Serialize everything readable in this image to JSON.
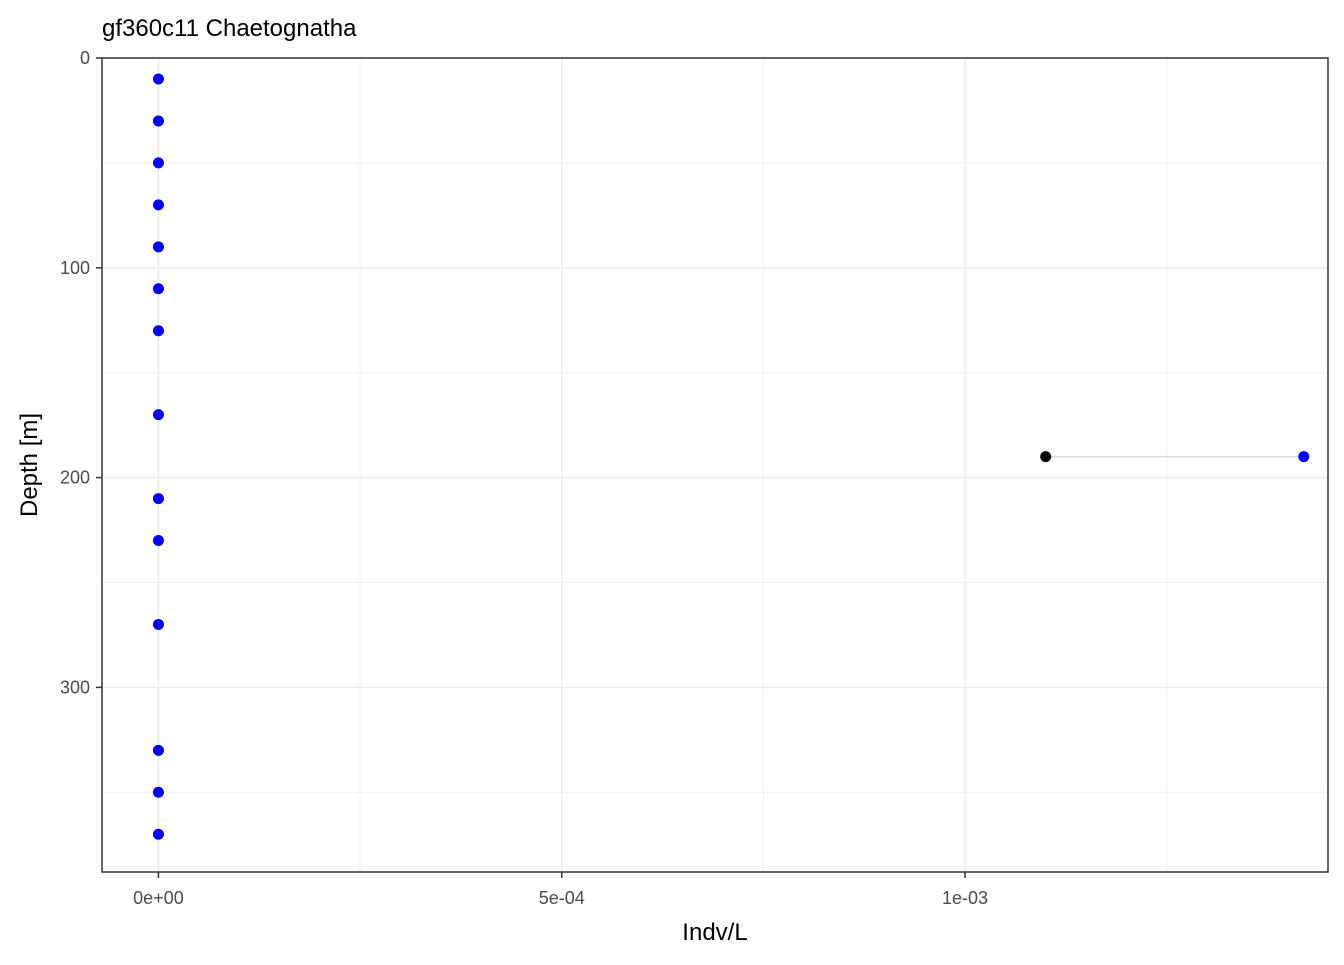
{
  "chart_data": {
    "type": "scatter",
    "title": "gf360c11 Chaetognatha",
    "xlabel": "Indv/L",
    "ylabel": "Depth [m]",
    "y_reversed": true,
    "xlim": [
      -7e-05,
      0.00145
    ],
    "ylim": [
      0,
      388
    ],
    "x_ticks": [
      {
        "value": 0,
        "label": "0e+00"
      },
      {
        "value": 0.0005,
        "label": "5e-04"
      },
      {
        "value": 0.001,
        "label": "1e-03"
      }
    ],
    "y_ticks": [
      {
        "value": 0,
        "label": "0"
      },
      {
        "value": 100,
        "label": "100"
      },
      {
        "value": 200,
        "label": "200"
      },
      {
        "value": 300,
        "label": "300"
      }
    ],
    "x_minor_gridlines": [
      0.00025,
      0.00075,
      0.00125
    ],
    "y_minor_gridlines": [
      50,
      150,
      250,
      350
    ],
    "grid": true,
    "legend": "none",
    "series": [
      {
        "color": "#0000ff",
        "points": [
          {
            "x": 0,
            "y": 10
          },
          {
            "x": 0,
            "y": 30
          },
          {
            "x": 0,
            "y": 50
          },
          {
            "x": 0,
            "y": 70
          },
          {
            "x": 0,
            "y": 90
          },
          {
            "x": 0,
            "y": 110
          },
          {
            "x": 0,
            "y": 130
          },
          {
            "x": 0,
            "y": 170
          },
          {
            "x": 0.00142,
            "y": 190
          },
          {
            "x": 0,
            "y": 210
          },
          {
            "x": 0,
            "y": 230
          },
          {
            "x": 0,
            "y": 270
          },
          {
            "x": 0,
            "y": 330
          },
          {
            "x": 0,
            "y": 350
          },
          {
            "x": 0,
            "y": 370
          }
        ]
      },
      {
        "color": "#000000",
        "points": [
          {
            "x": 0.0011,
            "y": 190
          }
        ]
      }
    ],
    "segments": [
      {
        "x1": 0.0011,
        "x2": 0.00142,
        "y": 190,
        "color": "#d9d9d9"
      }
    ]
  }
}
